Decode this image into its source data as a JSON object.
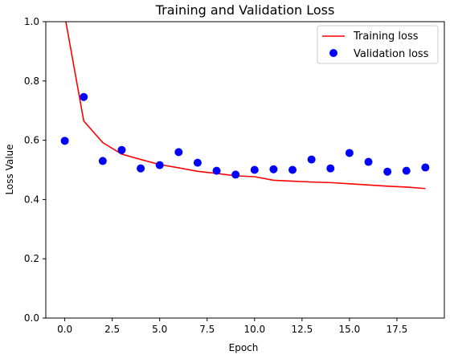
{
  "chart_data": {
    "type": "line",
    "title": "Training and Validation Loss",
    "xlabel": "Epoch",
    "ylabel": "Loss Value",
    "xlim": [
      -1.0,
      20.0
    ],
    "ylim": [
      0.0,
      1.0
    ],
    "xticks": [
      0.0,
      2.5,
      5.0,
      7.5,
      10.0,
      12.5,
      15.0,
      17.5
    ],
    "xtick_labels": [
      "0.0",
      "2.5",
      "5.0",
      "7.5",
      "10.0",
      "12.5",
      "15.0",
      "17.5"
    ],
    "yticks": [
      0.0,
      0.2,
      0.4,
      0.6,
      0.8,
      1.0
    ],
    "ytick_labels": [
      "0.0",
      "0.2",
      "0.4",
      "0.6",
      "0.8",
      "1.0"
    ],
    "grid": false,
    "legend_position": "top-right",
    "x": [
      0,
      1,
      2,
      3,
      4,
      5,
      6,
      7,
      8,
      9,
      10,
      11,
      12,
      13,
      14,
      15,
      16,
      17,
      18,
      19
    ],
    "series": [
      {
        "name": "Training loss",
        "style": "line",
        "color": "#ff0000",
        "values": [
          1.02,
          0.665,
          0.592,
          0.553,
          0.535,
          0.518,
          0.507,
          0.495,
          0.488,
          0.48,
          0.477,
          0.465,
          0.462,
          0.459,
          0.457,
          0.453,
          0.449,
          0.445,
          0.442,
          0.437
        ]
      },
      {
        "name": "Validation loss",
        "style": "marker",
        "color": "#0000ff",
        "values": [
          0.598,
          0.746,
          0.53,
          0.567,
          0.505,
          0.516,
          0.56,
          0.524,
          0.497,
          0.484,
          0.5,
          0.502,
          0.5,
          0.535,
          0.505,
          0.557,
          0.527,
          0.494,
          0.497,
          0.508
        ]
      }
    ]
  }
}
